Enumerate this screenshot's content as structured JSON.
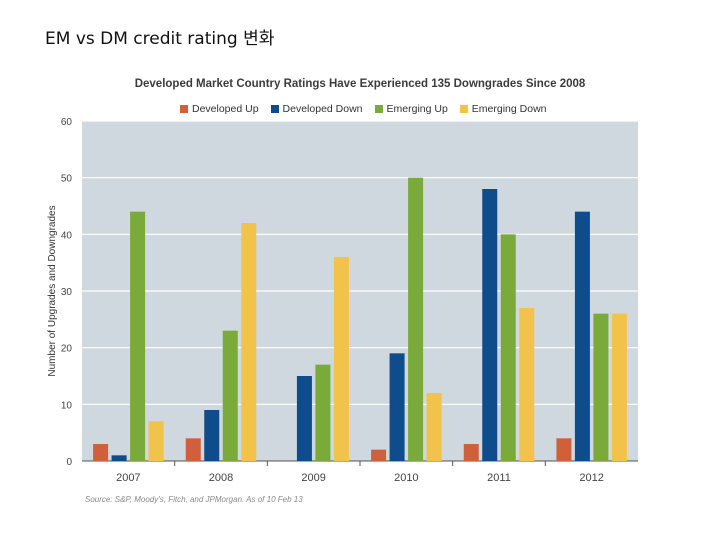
{
  "slide": {
    "title": "EM vs DM credit rating 변화"
  },
  "chart_data": {
    "type": "bar",
    "title": "Developed Market Country Ratings Have Experienced 135 Downgrades Since 2008",
    "xlabel": "",
    "ylabel": "Number of Upgrades and Downgrades",
    "ylim": [
      0,
      60
    ],
    "yticks": [
      0,
      10,
      20,
      30,
      40,
      50,
      60
    ],
    "categories": [
      "2007",
      "2008",
      "2009",
      "2010",
      "2011",
      "2012"
    ],
    "series": [
      {
        "name": "Developed Up",
        "color": "#d0603a",
        "values": [
          3,
          4,
          0,
          2,
          3,
          4
        ]
      },
      {
        "name": "Developed Down",
        "color": "#0f4c8c",
        "values": [
          1,
          9,
          15,
          19,
          48,
          44
        ]
      },
      {
        "name": "Emerging Up",
        "color": "#7aab3a",
        "values": [
          44,
          23,
          17,
          50,
          40,
          26
        ]
      },
      {
        "name": "Emerging Down",
        "color": "#f2c34a",
        "values": [
          7,
          42,
          36,
          12,
          27,
          26
        ]
      }
    ],
    "grid": true,
    "legend_position": "top",
    "plot_background": "#cfd7df",
    "source": "Source: S&P, Moody's, Fitch, and JPMorgan. As of 10 Feb 13"
  }
}
